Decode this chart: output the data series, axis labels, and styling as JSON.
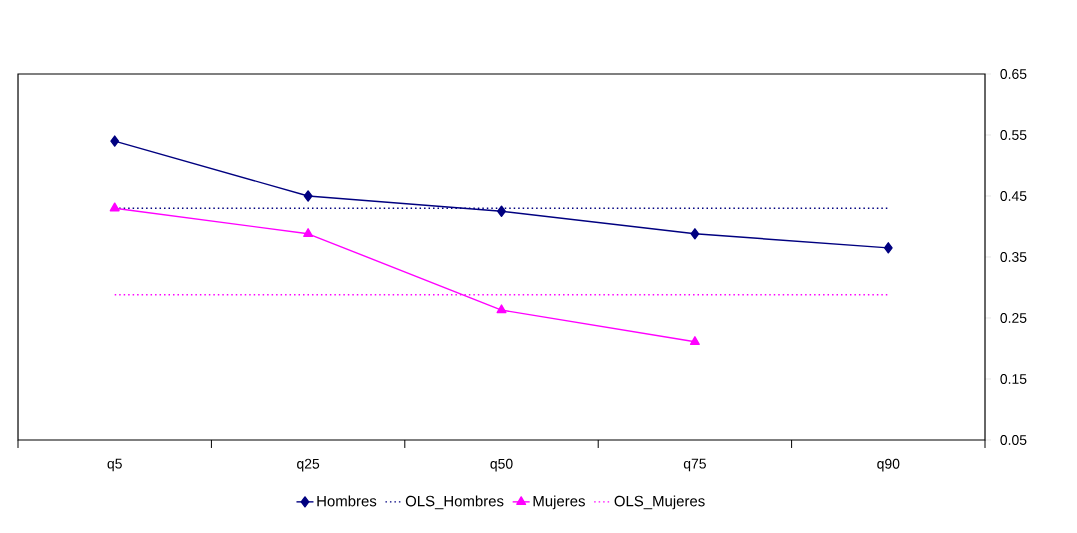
{
  "chart_data": {
    "type": "line",
    "categories": [
      "q5",
      "q25",
      "q50",
      "q75",
      "q90"
    ],
    "series": [
      {
        "name": "Hombres",
        "color": "#000080",
        "values": [
          0.54,
          0.45,
          0.425,
          0.388,
          0.365
        ],
        "marker": "diamond",
        "line_style": "solid"
      },
      {
        "name": "OLS_Hombres",
        "color": "#000080",
        "values": [
          0.43,
          0.43,
          0.43,
          0.43,
          0.43
        ],
        "marker": "none",
        "line_style": "dotted"
      },
      {
        "name": "Mujeres",
        "color": "#ff00ff",
        "values": [
          0.43,
          0.388,
          0.263,
          0.211,
          null
        ],
        "marker": "triangle",
        "line_style": "solid"
      },
      {
        "name": "OLS_Mujeres",
        "color": "#ff00ff",
        "values": [
          0.288,
          0.288,
          0.288,
          0.288,
          0.288
        ],
        "marker": "none",
        "line_style": "dotted"
      }
    ],
    "ylim": [
      0.05,
      0.65
    ],
    "yticks": [
      0.05,
      0.15,
      0.25,
      0.35,
      0.45,
      0.55,
      0.65
    ],
    "grid": false,
    "legend": "bottom"
  }
}
